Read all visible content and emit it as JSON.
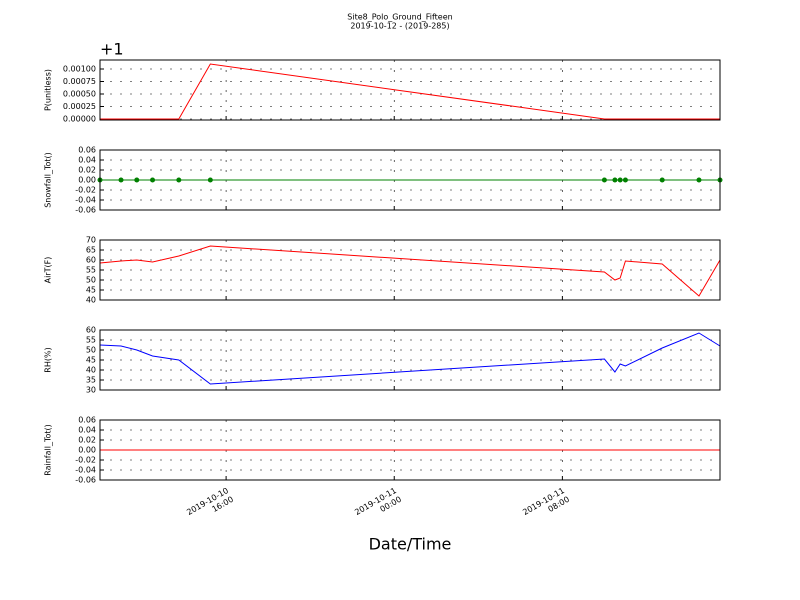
{
  "chart_data": [
    {
      "type": "line",
      "title": "Site8_Polo_Ground_Fifteen",
      "subtitle": "2019-10-12 - (2019-285)",
      "offset_text": "+1",
      "ylabel": "P(unitless)",
      "color": "#ff0000",
      "marker": false,
      "grid": true,
      "x": [
        "2019-10-10 10:00",
        "2019-10-10 11:00",
        "2019-10-10 11:45",
        "2019-10-10 12:30",
        "2019-10-10 13:45",
        "2019-10-10 15:15",
        "2019-10-11 10:00",
        "2019-10-11 10:30",
        "2019-10-11 10:45",
        "2019-10-11 11:00",
        "2019-10-11 12:45",
        "2019-10-11 14:30",
        "2019-10-11 15:30"
      ],
      "values": [
        0,
        0,
        0,
        0,
        0,
        0.0011,
        0,
        0,
        0,
        0,
        0,
        0,
        0
      ],
      "xlim": [
        "2019-10-10 10:00",
        "2019-10-11 15:30"
      ],
      "ylim": [
        -2e-05,
        0.00118
      ],
      "yticks": [
        {
          "value": 0,
          "label": "0.00000"
        },
        {
          "value": 0.00025,
          "label": "0.00025"
        },
        {
          "value": 0.0005,
          "label": "0.00050"
        },
        {
          "value": 0.00075,
          "label": "0.00075"
        },
        {
          "value": 0.001,
          "label": "0.00100"
        }
      ]
    },
    {
      "type": "line",
      "ylabel": "Snowfall_Tot()",
      "color": "#008000",
      "marker": true,
      "grid": true,
      "x": [
        "2019-10-10 10:00",
        "2019-10-10 11:00",
        "2019-10-10 11:45",
        "2019-10-10 12:30",
        "2019-10-10 13:45",
        "2019-10-10 15:15",
        "2019-10-11 10:00",
        "2019-10-11 10:30",
        "2019-10-11 10:45",
        "2019-10-11 11:00",
        "2019-10-11 12:45",
        "2019-10-11 14:30",
        "2019-10-11 15:30"
      ],
      "values": [
        0,
        0,
        0,
        0,
        0,
        0,
        0,
        0,
        0,
        0,
        0,
        0,
        0
      ],
      "xlim": [
        "2019-10-10 10:00",
        "2019-10-11 15:30"
      ],
      "ylim": [
        -0.06,
        0.06
      ],
      "yticks": [
        {
          "value": -0.06,
          "label": "-0.06"
        },
        {
          "value": -0.04,
          "label": "-0.04"
        },
        {
          "value": -0.02,
          "label": "-0.02"
        },
        {
          "value": 0,
          "label": "0.00"
        },
        {
          "value": 0.02,
          "label": "0.02"
        },
        {
          "value": 0.04,
          "label": "0.04"
        },
        {
          "value": 0.06,
          "label": "0.06"
        }
      ]
    },
    {
      "type": "line",
      "ylabel": "AirT(F)",
      "color": "#ff0000",
      "marker": false,
      "grid": true,
      "x": [
        "2019-10-10 10:00",
        "2019-10-10 11:00",
        "2019-10-10 11:45",
        "2019-10-10 12:30",
        "2019-10-10 13:45",
        "2019-10-10 15:15",
        "2019-10-11 10:00",
        "2019-10-11 10:30",
        "2019-10-11 10:45",
        "2019-10-11 11:00",
        "2019-10-11 12:45",
        "2019-10-11 14:30",
        "2019-10-11 15:30"
      ],
      "values": [
        58.5,
        59.5,
        60,
        59,
        62,
        67,
        54,
        50,
        51,
        59.5,
        58,
        42,
        60
      ],
      "xlim": [
        "2019-10-10 10:00",
        "2019-10-11 15:30"
      ],
      "ylim": [
        40,
        70
      ],
      "yticks": [
        40,
        45,
        50,
        55,
        60,
        65,
        70
      ]
    },
    {
      "type": "line",
      "ylabel": "RH(%)",
      "color": "#0000ff",
      "marker": false,
      "grid": true,
      "x": [
        "2019-10-10 10:00",
        "2019-10-10 11:00",
        "2019-10-10 11:45",
        "2019-10-10 12:30",
        "2019-10-10 13:45",
        "2019-10-10 15:15",
        "2019-10-11 10:00",
        "2019-10-11 10:30",
        "2019-10-11 10:45",
        "2019-10-11 11:00",
        "2019-10-11 12:45",
        "2019-10-11 14:30",
        "2019-10-11 15:30"
      ],
      "values": [
        52.5,
        52,
        50,
        47,
        45,
        33,
        45.5,
        39,
        43,
        42,
        51,
        58.5,
        52
      ],
      "xlim": [
        "2019-10-10 10:00",
        "2019-10-11 15:30"
      ],
      "ylim": [
        30,
        60
      ],
      "yticks": [
        30,
        35,
        40,
        45,
        50,
        55,
        60
      ]
    },
    {
      "type": "line",
      "ylabel": "Rainfall_Tot()",
      "xlabel": "Date/Time",
      "color": "#ff0000",
      "marker": false,
      "grid": true,
      "x": [
        "2019-10-10 10:00",
        "2019-10-10 11:00",
        "2019-10-10 11:45",
        "2019-10-10 12:30",
        "2019-10-10 13:45",
        "2019-10-10 15:15",
        "2019-10-11 10:00",
        "2019-10-11 10:30",
        "2019-10-11 10:45",
        "2019-10-11 11:00",
        "2019-10-11 12:45",
        "2019-10-11 14:30",
        "2019-10-11 15:30"
      ],
      "values": [
        0,
        0,
        0,
        0,
        0,
        0,
        0,
        0,
        0,
        0,
        0,
        0,
        0
      ],
      "xlim": [
        "2019-10-10 10:00",
        "2019-10-11 15:30"
      ],
      "ylim": [
        -0.06,
        0.06
      ],
      "yticks": [
        {
          "value": -0.06,
          "label": "-0.06"
        },
        {
          "value": -0.04,
          "label": "-0.04"
        },
        {
          "value": -0.02,
          "label": "-0.02"
        },
        {
          "value": 0,
          "label": "0.00"
        },
        {
          "value": 0.02,
          "label": "0.02"
        },
        {
          "value": 0.04,
          "label": "0.04"
        },
        {
          "value": 0.06,
          "label": "0.06"
        }
      ],
      "xticks": [
        {
          "value": "2019-10-10 16:00",
          "label": "2019-10-10\n16:00"
        },
        {
          "value": "2019-10-11 00:00",
          "label": "2019-10-11\n00:00"
        },
        {
          "value": "2019-10-11 08:00",
          "label": "2019-10-11\n08:00"
        }
      ]
    }
  ]
}
